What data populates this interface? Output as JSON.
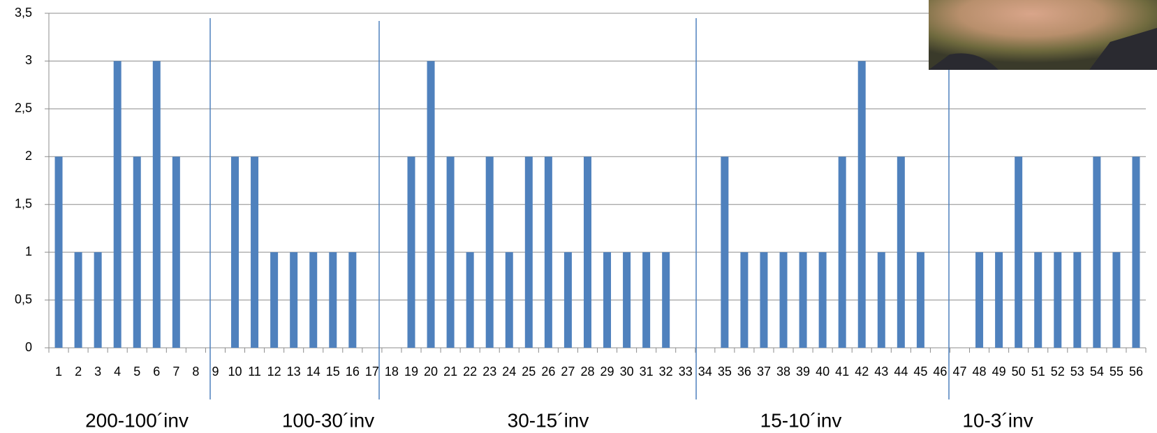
{
  "chart_data": {
    "type": "bar",
    "categories": [
      "1",
      "2",
      "3",
      "4",
      "5",
      "6",
      "7",
      "8",
      "9",
      "10",
      "11",
      "12",
      "13",
      "14",
      "15",
      "16",
      "17",
      "18",
      "19",
      "20",
      "21",
      "22",
      "23",
      "24",
      "25",
      "26",
      "27",
      "28",
      "29",
      "30",
      "31",
      "32",
      "33",
      "34",
      "35",
      "36",
      "37",
      "38",
      "39",
      "40",
      "41",
      "42",
      "43",
      "44",
      "45",
      "46",
      "47",
      "48",
      "49",
      "50",
      "51",
      "52",
      "53",
      "54",
      "55",
      "56"
    ],
    "values": [
      2,
      1,
      1,
      3,
      2,
      3,
      2,
      0,
      0,
      2,
      2,
      1,
      1,
      1,
      1,
      1,
      0,
      0,
      2,
      3,
      2,
      1,
      2,
      1,
      2,
      2,
      1,
      2,
      1,
      1,
      1,
      1,
      0,
      0,
      2,
      1,
      1,
      1,
      1,
      1,
      2,
      3,
      1,
      2,
      1,
      0,
      0,
      1,
      1,
      2,
      1,
      1,
      1,
      2,
      1,
      2
    ],
    "color": "#4f81bd",
    "ylim": [
      0,
      3.5
    ],
    "yticks": [
      0,
      {
        "value": 0.5,
        "label": "0,5"
      },
      1,
      {
        "value": 1.5,
        "label": "1,5"
      },
      2,
      {
        "value": 2.5,
        "label": "2,5"
      },
      3,
      {
        "value": 3.5,
        "label": "3,5"
      }
    ],
    "grid": true,
    "groups": [
      "200-100´inv",
      "100-30´inv",
      "30-15´inv",
      "15-10´inv",
      "10-3´inv"
    ]
  }
}
